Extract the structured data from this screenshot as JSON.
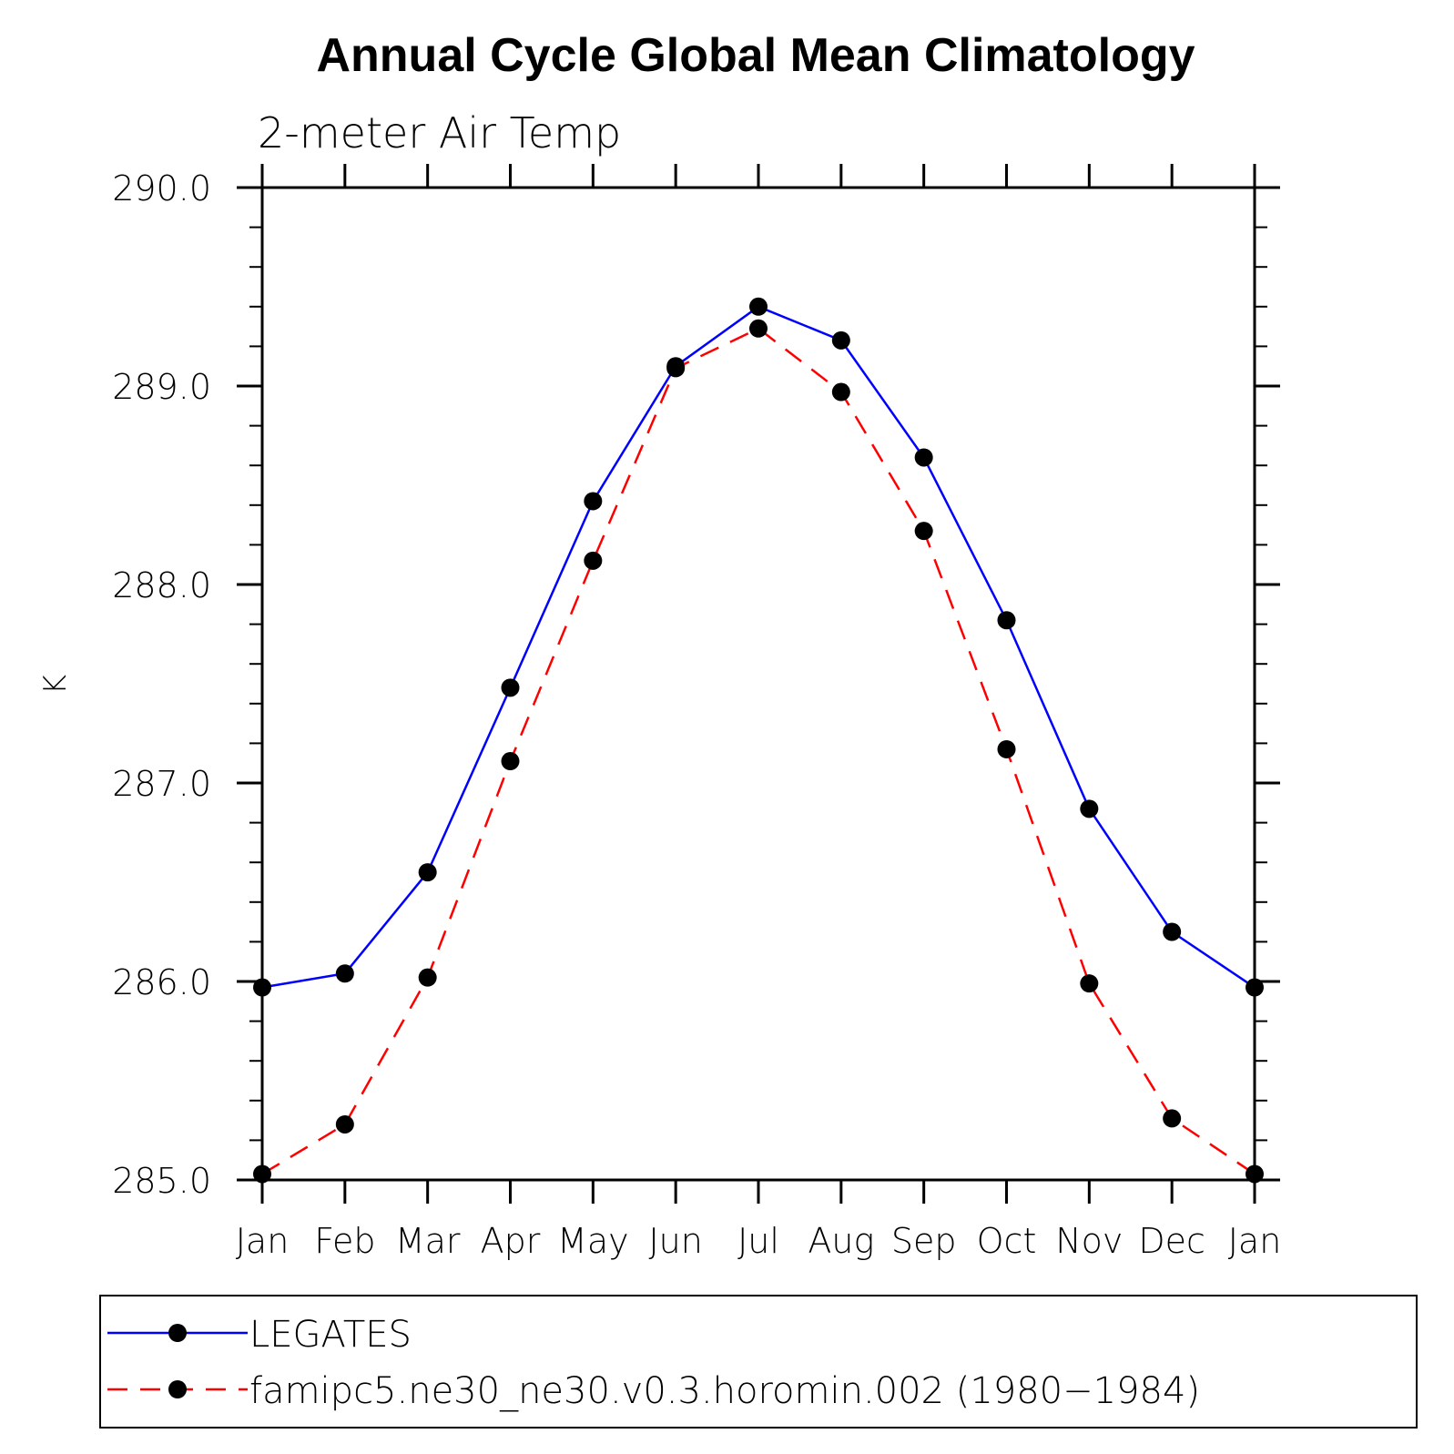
{
  "chart_data": {
    "type": "line",
    "title": "Annual Cycle Global Mean Climatology",
    "subtitle": "2-meter Air Temp",
    "ylabel": "K",
    "xlabel": "",
    "categories": [
      "Jan",
      "Feb",
      "Mar",
      "Apr",
      "May",
      "Jun",
      "Jul",
      "Aug",
      "Sep",
      "Oct",
      "Nov",
      "Dec",
      "Jan"
    ],
    "ylim": [
      285.0,
      290.0
    ],
    "yticks": [
      "285.0",
      "286.0",
      "287.0",
      "288.0",
      "289.0",
      "290.0"
    ],
    "y_minor_step": 0.2,
    "grid": false,
    "legend_position": "bottom",
    "series": [
      {
        "name": "LEGATES",
        "color": "#0000ff",
        "style": "solid",
        "marker": "dot",
        "values": [
          285.97,
          286.04,
          286.55,
          287.48,
          288.42,
          289.1,
          289.4,
          289.23,
          288.64,
          287.82,
          286.87,
          286.25,
          285.97
        ]
      },
      {
        "name": "famipc5.ne30_ne30.v0.3.horomin.002 (1980−1984)",
        "color": "#ff0000",
        "style": "dashed",
        "marker": "dot",
        "values": [
          285.03,
          285.28,
          286.02,
          287.11,
          288.12,
          289.09,
          289.29,
          288.97,
          288.27,
          287.17,
          285.99,
          285.31,
          285.03
        ]
      }
    ]
  }
}
